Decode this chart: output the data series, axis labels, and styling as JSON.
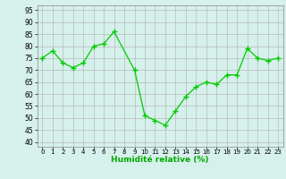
{
  "x": [
    0,
    1,
    2,
    3,
    4,
    5,
    6,
    7,
    9,
    10,
    11,
    12,
    13,
    14,
    15,
    16,
    17,
    18,
    19,
    20,
    21,
    22,
    23
  ],
  "y": [
    75,
    78,
    73,
    71,
    73,
    80,
    81,
    86,
    70,
    51,
    49,
    47,
    53,
    59,
    63,
    65,
    64,
    68,
    68,
    79,
    75,
    74,
    75
  ],
  "line_color": "#00cc00",
  "marker_color": "#00cc00",
  "bg_color": "#d6f0eb",
  "grid_color": "#b0b0b0",
  "xlabel": "Humidité relative (%)",
  "xlabel_color": "#00aa00",
  "ylabel_ticks": [
    40,
    45,
    50,
    55,
    60,
    65,
    70,
    75,
    80,
    85,
    90,
    95
  ],
  "ylim": [
    38,
    97
  ],
  "xlim": [
    -0.5,
    23.5
  ]
}
